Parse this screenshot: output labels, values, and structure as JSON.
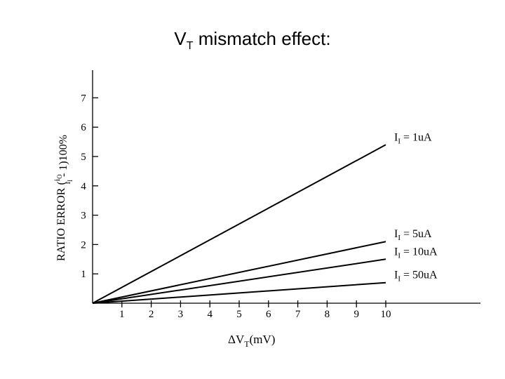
{
  "slide": {
    "title_main": "V",
    "title_sub": "T",
    "title_rest": " mismatch effect:"
  },
  "chart_data": {
    "type": "line",
    "x_ticks": [
      "1",
      "2",
      "3",
      "4",
      "5",
      "6",
      "7",
      "8",
      "9",
      "10"
    ],
    "y_ticks": [
      "1",
      "2",
      "3",
      "4",
      "5",
      "6",
      "7"
    ],
    "xlabel": {
      "delta": "Δ",
      "main": "V",
      "sub": "T",
      "rest": "(mV)"
    },
    "ylabel": {
      "prefix": "RATIO ERROR (",
      "num": "i",
      "num_sub": "O",
      "den": "i",
      "den_sub": "I",
      "suffix": "- 1)100%"
    },
    "xlim": [
      0,
      10
    ],
    "ylim": [
      0,
      7
    ],
    "series": [
      {
        "label_main": "I",
        "label_sub": "I",
        "label_eq": " = ",
        "label_val": "1uA",
        "x": [
          0,
          10
        ],
        "values": [
          0,
          5.4
        ]
      },
      {
        "label_main": "I",
        "label_sub": "I",
        "label_eq": " = ",
        "label_val": "5uA",
        "x": [
          0,
          10
        ],
        "values": [
          0,
          2.1
        ]
      },
      {
        "label_main": "I",
        "label_sub": "I",
        "label_eq": " =",
        "label_val": "10uA",
        "x": [
          0,
          10
        ],
        "values": [
          0,
          1.5
        ]
      },
      {
        "label_main": "I",
        "label_sub": "I",
        "label_eq": " = ",
        "label_val": "50uA",
        "x": [
          0,
          10
        ],
        "values": [
          0,
          0.7
        ]
      }
    ]
  }
}
